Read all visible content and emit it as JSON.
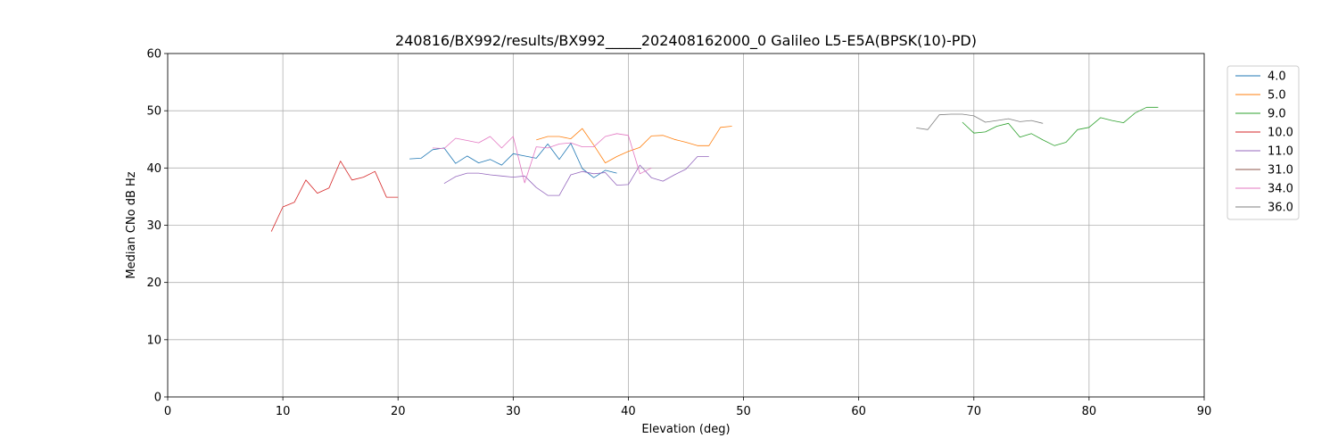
{
  "chart_data": {
    "type": "line",
    "title": "240816/BX992/results/BX992_____202408162000_0 Galileo L5-E5A(BPSK(10)-PD)",
    "xlabel": "Elevation (deg)",
    "ylabel": "Median CNo dB Hz",
    "xlim": [
      0,
      90
    ],
    "ylim": [
      0,
      60
    ],
    "xticks": [
      0,
      10,
      20,
      30,
      40,
      50,
      60,
      70,
      80,
      90
    ],
    "yticks": [
      0,
      10,
      20,
      30,
      40,
      50,
      60
    ],
    "grid": true,
    "legend_position": "upper-right-outside",
    "series": [
      {
        "name": "4.0",
        "color": "#1f77b4",
        "x": [
          21,
          22,
          23,
          24,
          25,
          26,
          27,
          28,
          29,
          30,
          31,
          32,
          33,
          34,
          35,
          36,
          37,
          38,
          39
        ],
        "y": [
          41.6,
          41.7,
          43.2,
          43.5,
          40.8,
          42.1,
          40.9,
          41.5,
          40.5,
          42.5,
          42.1,
          41.7,
          44.2,
          41.5,
          44.3,
          39.9,
          38.3,
          39.6,
          39.1
        ]
      },
      {
        "name": "5.0",
        "color": "#ff7f0e",
        "x": [
          32,
          33,
          34,
          35,
          36,
          37,
          38,
          39,
          40,
          41,
          42,
          43,
          44,
          45,
          46,
          47,
          48,
          49
        ],
        "y": [
          44.9,
          45.5,
          45.5,
          45.1,
          46.9,
          44.0,
          40.9,
          42.0,
          42.9,
          43.6,
          45.6,
          45.7,
          45.0,
          44.5,
          43.9,
          43.9,
          47.1,
          47.3
        ]
      },
      {
        "name": "9.0",
        "color": "#2ca02c",
        "x": [
          69,
          70,
          71,
          72,
          73,
          74,
          75,
          76,
          77,
          78,
          79,
          80,
          81,
          82,
          83,
          84,
          85,
          86
        ],
        "y": [
          48.0,
          46.1,
          46.3,
          47.3,
          47.8,
          45.4,
          46.0,
          44.9,
          43.9,
          44.5,
          46.7,
          47.1,
          48.8,
          48.3,
          47.9,
          49.6,
          50.6,
          50.6
        ]
      },
      {
        "name": "10.0",
        "color": "#d62728",
        "x": [
          9,
          10,
          11,
          12,
          13,
          14,
          15,
          16,
          17,
          18,
          19,
          20
        ],
        "y": [
          28.9,
          33.2,
          34.0,
          37.9,
          35.6,
          36.5,
          41.2,
          37.9,
          38.4,
          39.4,
          34.9,
          34.9
        ]
      },
      {
        "name": "11.0",
        "color": "#9467bd",
        "x": [
          24,
          25,
          26,
          27,
          28,
          29,
          30,
          31,
          32,
          33,
          34,
          35,
          36,
          37,
          38,
          39,
          40,
          41,
          42,
          43,
          44,
          45,
          46,
          47
        ],
        "y": [
          37.3,
          38.5,
          39.1,
          39.1,
          38.8,
          38.6,
          38.4,
          38.6,
          36.6,
          35.2,
          35.2,
          38.8,
          39.4,
          39.0,
          39.2,
          37.0,
          37.1,
          40.5,
          38.3,
          37.7,
          38.8,
          39.8,
          42.0,
          42.0
        ]
      },
      {
        "name": "31.0",
        "color": "#8c564b",
        "x": [],
        "y": []
      },
      {
        "name": "34.0",
        "color": "#e377c2",
        "x": [
          23,
          24,
          25,
          26,
          27,
          28,
          29,
          30,
          31,
          32,
          33,
          34,
          35,
          36,
          37,
          38,
          39,
          40,
          41,
          42
        ],
        "y": [
          43.5,
          43.4,
          45.2,
          44.8,
          44.4,
          45.5,
          43.5,
          45.5,
          37.4,
          43.7,
          43.5,
          44.2,
          44.4,
          43.7,
          43.7,
          45.5,
          46.0,
          45.7,
          39.0,
          40.0
        ]
      },
      {
        "name": "36.0",
        "color": "#7f7f7f",
        "x": [
          65,
          66,
          67,
          68,
          69,
          70,
          71,
          72,
          73,
          74,
          75,
          76
        ],
        "y": [
          47.0,
          46.7,
          49.3,
          49.4,
          49.4,
          49.1,
          48.0,
          48.3,
          48.6,
          48.1,
          48.3,
          47.8
        ]
      }
    ]
  }
}
